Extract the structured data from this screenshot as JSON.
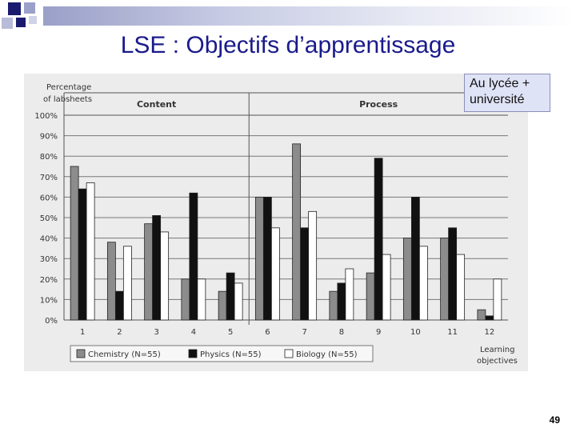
{
  "slide": {
    "title": "LSE : Objectifs d’apprentissage",
    "callout": "Au lycée + université",
    "page_number": "49"
  },
  "colors": {
    "chemistry": "#8c8c8c",
    "physics": "#111111",
    "biology": "#ffffff",
    "title": "#1a1a8c"
  },
  "chart_data": {
    "type": "bar",
    "ylabel_line1": "Percentage",
    "ylabel_line2": "of labsheets",
    "xlabel_line1": "Learning",
    "xlabel_line2": "objectives",
    "categories": [
      "1",
      "2",
      "3",
      "4",
      "5",
      "6",
      "7",
      "8",
      "9",
      "10",
      "11",
      "12"
    ],
    "ylim": [
      0,
      100
    ],
    "yticks": [
      "0%",
      "10%",
      "20%",
      "30%",
      "40%",
      "50%",
      "60%",
      "70%",
      "80%",
      "90%",
      "100%"
    ],
    "sections": [
      {
        "label": "Content",
        "from": "1",
        "to": "5"
      },
      {
        "label": "Process",
        "from": "6",
        "to": "12"
      }
    ],
    "series": [
      {
        "name": "Chemistry",
        "n": "(N=55)",
        "values": [
          75,
          38,
          47,
          20,
          14,
          60,
          86,
          14,
          23,
          40,
          40,
          5
        ]
      },
      {
        "name": "Physics",
        "n": "(N=55)",
        "values": [
          64,
          14,
          51,
          62,
          23,
          60,
          45,
          18,
          79,
          60,
          45,
          2
        ]
      },
      {
        "name": "Biology",
        "n": "(N=55)",
        "values": [
          67,
          36,
          43,
          20,
          18,
          45,
          53,
          25,
          32,
          36,
          32,
          20
        ]
      }
    ],
    "grid": true,
    "legend_position": "bottom"
  }
}
